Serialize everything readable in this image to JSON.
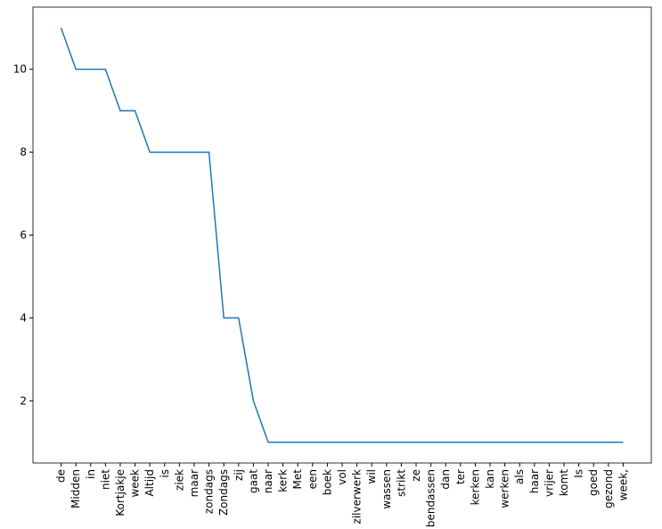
{
  "chart_data": {
    "type": "line",
    "categories": [
      "de",
      "Midden",
      "in",
      "niet",
      "Kortjakje",
      "week",
      "Altijd",
      "is",
      "ziek",
      "maar",
      "zondags",
      "Zondags",
      "zij",
      "gaat",
      "naar",
      "kerk",
      "Met",
      "een",
      "boek",
      "vol",
      "zilverwerk",
      "wil",
      "wassen",
      "strikt",
      "ze",
      "bendassen",
      "dan",
      "ter",
      "kerken",
      "kan",
      "werken",
      "als",
      "haar",
      "vrijer",
      "komt",
      "Is",
      "goed",
      "gezond",
      "week,"
    ],
    "values": [
      11,
      10,
      10,
      10,
      9,
      9,
      8,
      8,
      8,
      8,
      8,
      4,
      4,
      2,
      1,
      1,
      1,
      1,
      1,
      1,
      1,
      1,
      1,
      1,
      1,
      1,
      1,
      1,
      1,
      1,
      1,
      1,
      1,
      1,
      1,
      1,
      1,
      1,
      1
    ],
    "color": "#1f77b4",
    "ylim": [
      0.5,
      11.5
    ],
    "yticks": [
      2,
      4,
      6,
      8,
      10
    ]
  }
}
